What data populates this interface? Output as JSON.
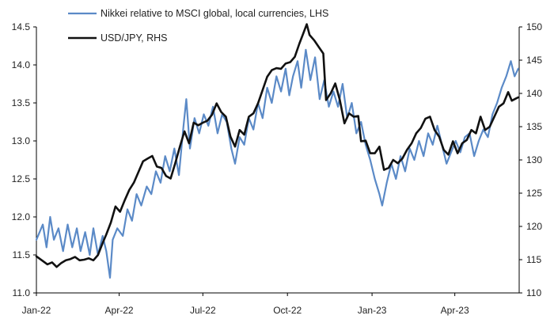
{
  "chart_data": {
    "type": "line",
    "title": "",
    "xlabel": "",
    "ylabel_left": "",
    "ylabel_right": "",
    "x_range": [
      "2022-01-01",
      "2023-06-10"
    ],
    "x_ticks": [
      {
        "label": "Jan-22",
        "date": "2022-01-01"
      },
      {
        "label": "Apr-22",
        "date": "2022-04-01"
      },
      {
        "label": "Jul-22",
        "date": "2022-07-01"
      },
      {
        "label": "Oct-22",
        "date": "2022-10-01"
      },
      {
        "label": "Jan-23",
        "date": "2023-01-01"
      },
      {
        "label": "Apr-23",
        "date": "2023-04-01"
      }
    ],
    "y_left": {
      "min": 11.0,
      "max": 14.5,
      "ticks": [
        "11.0",
        "11.5",
        "12.0",
        "12.5",
        "13.0",
        "13.5",
        "14.0",
        "14.5"
      ]
    },
    "y_right": {
      "min": 110,
      "max": 150,
      "ticks": [
        "110",
        "115",
        "120",
        "125",
        "130",
        "135",
        "140",
        "145",
        "150"
      ]
    },
    "grid": false,
    "legend_position": "top-left",
    "series": [
      {
        "name": "Nikkei relative to MSCI global, local currencies, LHS",
        "axis": "left",
        "color": "#5b8ac7",
        "points": [
          [
            "2022-01-01",
            11.7
          ],
          [
            "2022-01-08",
            11.9
          ],
          [
            "2022-01-12",
            11.6
          ],
          [
            "2022-01-16",
            12.0
          ],
          [
            "2022-01-20",
            11.7
          ],
          [
            "2022-01-25",
            11.85
          ],
          [
            "2022-01-30",
            11.55
          ],
          [
            "2022-02-04",
            11.9
          ],
          [
            "2022-02-09",
            11.6
          ],
          [
            "2022-02-14",
            11.85
          ],
          [
            "2022-02-18",
            11.55
          ],
          [
            "2022-02-23",
            11.8
          ],
          [
            "2022-02-28",
            11.5
          ],
          [
            "2022-03-04",
            11.85
          ],
          [
            "2022-03-09",
            11.5
          ],
          [
            "2022-03-14",
            11.75
          ],
          [
            "2022-03-18",
            11.55
          ],
          [
            "2022-03-22",
            11.2
          ],
          [
            "2022-03-25",
            11.7
          ],
          [
            "2022-03-30",
            11.85
          ],
          [
            "2022-04-05",
            11.75
          ],
          [
            "2022-04-10",
            12.1
          ],
          [
            "2022-04-15",
            11.95
          ],
          [
            "2022-04-20",
            12.3
          ],
          [
            "2022-04-25",
            12.15
          ],
          [
            "2022-05-01",
            12.4
          ],
          [
            "2022-05-06",
            12.3
          ],
          [
            "2022-05-11",
            12.6
          ],
          [
            "2022-05-16",
            12.45
          ],
          [
            "2022-05-21",
            12.8
          ],
          [
            "2022-05-26",
            12.6
          ],
          [
            "2022-05-31",
            12.9
          ],
          [
            "2022-06-05",
            12.55
          ],
          [
            "2022-06-10",
            13.2
          ],
          [
            "2022-06-13",
            13.55
          ],
          [
            "2022-06-17",
            12.9
          ],
          [
            "2022-06-22",
            13.3
          ],
          [
            "2022-06-27",
            13.1
          ],
          [
            "2022-07-02",
            13.35
          ],
          [
            "2022-07-07",
            13.2
          ],
          [
            "2022-07-12",
            13.45
          ],
          [
            "2022-07-17",
            13.1
          ],
          [
            "2022-07-22",
            13.35
          ],
          [
            "2022-07-27",
            13.25
          ],
          [
            "2022-08-01",
            12.9
          ],
          [
            "2022-08-05",
            12.7
          ],
          [
            "2022-08-10",
            13.05
          ],
          [
            "2022-08-15",
            12.95
          ],
          [
            "2022-08-20",
            13.3
          ],
          [
            "2022-08-25",
            13.15
          ],
          [
            "2022-08-30",
            13.5
          ],
          [
            "2022-09-04",
            13.3
          ],
          [
            "2022-09-09",
            13.7
          ],
          [
            "2022-09-14",
            13.5
          ],
          [
            "2022-09-19",
            13.85
          ],
          [
            "2022-09-24",
            13.65
          ],
          [
            "2022-09-29",
            13.95
          ],
          [
            "2022-10-03",
            13.6
          ],
          [
            "2022-10-07",
            13.85
          ],
          [
            "2022-10-12",
            14.05
          ],
          [
            "2022-10-16",
            13.7
          ],
          [
            "2022-10-21",
            14.2
          ],
          [
            "2022-10-26",
            13.8
          ],
          [
            "2022-10-31",
            14.1
          ],
          [
            "2022-11-05",
            13.55
          ],
          [
            "2022-11-10",
            13.8
          ],
          [
            "2022-11-15",
            13.45
          ],
          [
            "2022-11-20",
            13.65
          ],
          [
            "2022-11-25",
            13.45
          ],
          [
            "2022-11-30",
            13.75
          ],
          [
            "2022-12-05",
            13.3
          ],
          [
            "2022-12-10",
            13.5
          ],
          [
            "2022-12-15",
            13.1
          ],
          [
            "2022-12-20",
            13.25
          ],
          [
            "2022-12-25",
            12.95
          ],
          [
            "2022-12-30",
            12.75
          ],
          [
            "2023-01-04",
            12.5
          ],
          [
            "2023-01-09",
            12.3
          ],
          [
            "2023-01-12",
            12.15
          ],
          [
            "2023-01-17",
            12.45
          ],
          [
            "2023-01-22",
            12.7
          ],
          [
            "2023-01-27",
            12.5
          ],
          [
            "2023-02-01",
            12.8
          ],
          [
            "2023-02-06",
            12.6
          ],
          [
            "2023-02-11",
            12.9
          ],
          [
            "2023-02-16",
            12.75
          ],
          [
            "2023-02-21",
            13.0
          ],
          [
            "2023-02-26",
            12.8
          ],
          [
            "2023-03-03",
            13.1
          ],
          [
            "2023-03-08",
            12.95
          ],
          [
            "2023-03-13",
            13.2
          ],
          [
            "2023-03-18",
            12.95
          ],
          [
            "2023-03-23",
            12.7
          ],
          [
            "2023-03-28",
            12.85
          ],
          [
            "2023-04-02",
            13.0
          ],
          [
            "2023-04-07",
            12.85
          ],
          [
            "2023-04-12",
            13.05
          ],
          [
            "2023-04-17",
            13.1
          ],
          [
            "2023-04-22",
            12.8
          ],
          [
            "2023-04-27",
            13.0
          ],
          [
            "2023-05-02",
            13.15
          ],
          [
            "2023-05-07",
            13.05
          ],
          [
            "2023-05-12",
            13.35
          ],
          [
            "2023-05-17",
            13.5
          ],
          [
            "2023-05-22",
            13.7
          ],
          [
            "2023-05-27",
            13.85
          ],
          [
            "2023-06-01",
            14.05
          ],
          [
            "2023-06-05",
            13.85
          ],
          [
            "2023-06-09",
            13.95
          ]
        ]
      },
      {
        "name": "USD/JPY, RHS",
        "axis": "right",
        "color": "#111111",
        "points": [
          [
            "2022-01-01",
            115.5
          ],
          [
            "2022-01-08",
            114.8
          ],
          [
            "2022-01-13",
            114.3
          ],
          [
            "2022-01-18",
            114.6
          ],
          [
            "2022-01-23",
            113.9
          ],
          [
            "2022-01-28",
            114.5
          ],
          [
            "2022-02-02",
            114.9
          ],
          [
            "2022-02-07",
            115.1
          ],
          [
            "2022-02-12",
            115.4
          ],
          [
            "2022-02-17",
            114.9
          ],
          [
            "2022-02-22",
            115.0
          ],
          [
            "2022-02-27",
            115.2
          ],
          [
            "2022-03-04",
            114.9
          ],
          [
            "2022-03-09",
            115.7
          ],
          [
            "2022-03-14",
            117.5
          ],
          [
            "2022-03-18",
            118.8
          ],
          [
            "2022-03-23",
            120.6
          ],
          [
            "2022-03-28",
            123.0
          ],
          [
            "2022-04-02",
            122.2
          ],
          [
            "2022-04-07",
            123.9
          ],
          [
            "2022-04-12",
            125.5
          ],
          [
            "2022-04-17",
            126.6
          ],
          [
            "2022-04-22",
            128.2
          ],
          [
            "2022-04-27",
            129.8
          ],
          [
            "2022-05-02",
            130.2
          ],
          [
            "2022-05-07",
            130.6
          ],
          [
            "2022-05-12",
            129.0
          ],
          [
            "2022-05-17",
            128.8
          ],
          [
            "2022-05-22",
            127.6
          ],
          [
            "2022-05-27",
            127.2
          ],
          [
            "2022-06-01",
            129.5
          ],
          [
            "2022-06-06",
            132.0
          ],
          [
            "2022-06-11",
            134.3
          ],
          [
            "2022-06-16",
            132.5
          ],
          [
            "2022-06-21",
            135.6
          ],
          [
            "2022-06-26",
            135.2
          ],
          [
            "2022-07-01",
            135.6
          ],
          [
            "2022-07-06",
            135.9
          ],
          [
            "2022-07-11",
            136.8
          ],
          [
            "2022-07-16",
            138.5
          ],
          [
            "2022-07-21",
            137.2
          ],
          [
            "2022-07-26",
            136.5
          ],
          [
            "2022-07-31",
            133.5
          ],
          [
            "2022-08-05",
            132.0
          ],
          [
            "2022-08-10",
            134.5
          ],
          [
            "2022-08-15",
            133.8
          ],
          [
            "2022-08-20",
            136.5
          ],
          [
            "2022-08-25",
            137.0
          ],
          [
            "2022-08-30",
            138.5
          ],
          [
            "2022-09-04",
            140.5
          ],
          [
            "2022-09-09",
            142.5
          ],
          [
            "2022-09-14",
            143.5
          ],
          [
            "2022-09-19",
            143.8
          ],
          [
            "2022-09-24",
            143.7
          ],
          [
            "2022-09-29",
            144.5
          ],
          [
            "2022-10-04",
            144.7
          ],
          [
            "2022-10-09",
            145.5
          ],
          [
            "2022-10-14",
            147.5
          ],
          [
            "2022-10-19",
            149.3
          ],
          [
            "2022-10-22",
            150.4
          ],
          [
            "2022-10-25",
            148.8
          ],
          [
            "2022-10-30",
            148.0
          ],
          [
            "2022-11-04",
            147.0
          ],
          [
            "2022-11-09",
            146.0
          ],
          [
            "2022-11-12",
            139.0
          ],
          [
            "2022-11-17",
            140.0
          ],
          [
            "2022-11-22",
            141.5
          ],
          [
            "2022-11-27",
            139.0
          ],
          [
            "2022-12-02",
            135.5
          ],
          [
            "2022-12-07",
            137.0
          ],
          [
            "2022-12-12",
            136.5
          ],
          [
            "2022-12-17",
            136.6
          ],
          [
            "2022-12-20",
            132.8
          ],
          [
            "2022-12-25",
            132.9
          ],
          [
            "2022-12-30",
            131.0
          ],
          [
            "2023-01-04",
            131.0
          ],
          [
            "2023-01-09",
            132.0
          ],
          [
            "2023-01-14",
            128.5
          ],
          [
            "2023-01-19",
            128.8
          ],
          [
            "2023-01-24",
            130.0
          ],
          [
            "2023-01-29",
            129.5
          ],
          [
            "2023-02-03",
            130.2
          ],
          [
            "2023-02-08",
            131.5
          ],
          [
            "2023-02-13",
            132.5
          ],
          [
            "2023-02-18",
            134.0
          ],
          [
            "2023-02-23",
            134.8
          ],
          [
            "2023-02-28",
            136.2
          ],
          [
            "2023-03-05",
            136.5
          ],
          [
            "2023-03-10",
            134.5
          ],
          [
            "2023-03-15",
            133.5
          ],
          [
            "2023-03-20",
            131.5
          ],
          [
            "2023-03-25",
            130.8
          ],
          [
            "2023-03-30",
            132.8
          ],
          [
            "2023-04-04",
            131.0
          ],
          [
            "2023-04-09",
            132.5
          ],
          [
            "2023-04-14",
            133.0
          ],
          [
            "2023-04-19",
            134.5
          ],
          [
            "2023-04-24",
            134.0
          ],
          [
            "2023-04-29",
            136.5
          ],
          [
            "2023-05-04",
            134.5
          ],
          [
            "2023-05-09",
            135.0
          ],
          [
            "2023-05-14",
            136.5
          ],
          [
            "2023-05-19",
            138.0
          ],
          [
            "2023-05-24",
            138.5
          ],
          [
            "2023-05-29",
            140.2
          ],
          [
            "2023-06-02",
            138.9
          ],
          [
            "2023-06-06",
            139.2
          ],
          [
            "2023-06-09",
            139.4
          ]
        ]
      }
    ]
  }
}
